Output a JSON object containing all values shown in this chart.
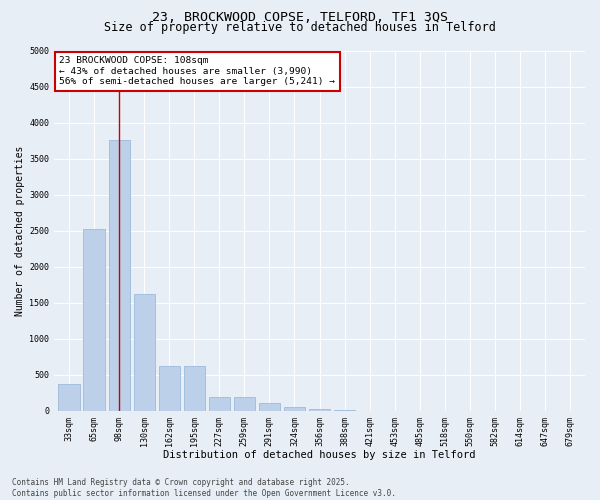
{
  "title1": "23, BROCKWOOD COPSE, TELFORD, TF1 3QS",
  "title2": "Size of property relative to detached houses in Telford",
  "xlabel": "Distribution of detached houses by size in Telford",
  "ylabel": "Number of detached properties",
  "categories": [
    "33sqm",
    "65sqm",
    "98sqm",
    "130sqm",
    "162sqm",
    "195sqm",
    "227sqm",
    "259sqm",
    "291sqm",
    "324sqm",
    "356sqm",
    "388sqm",
    "421sqm",
    "453sqm",
    "485sqm",
    "518sqm",
    "550sqm",
    "582sqm",
    "614sqm",
    "647sqm",
    "679sqm"
  ],
  "bar_heights": [
    380,
    2530,
    3760,
    1630,
    620,
    620,
    200,
    200,
    110,
    55,
    25,
    10,
    0,
    0,
    0,
    0,
    0,
    0,
    0,
    0,
    0
  ],
  "bar_color": "#bdd0e9",
  "bar_edge_color": "#92b4d5",
  "vline_x": 2,
  "vline_color": "#cc0000",
  "annotation_text": "23 BROCKWOOD COPSE: 108sqm\n← 43% of detached houses are smaller (3,990)\n56% of semi-detached houses are larger (5,241) →",
  "annotation_box_facecolor": "#ffffff",
  "annotation_box_edgecolor": "#cc0000",
  "ylim": [
    0,
    5000
  ],
  "yticks": [
    0,
    500,
    1000,
    1500,
    2000,
    2500,
    3000,
    3500,
    4000,
    4500,
    5000
  ],
  "background_color": "#e8eef5",
  "plot_bg_color": "#e8eef5",
  "title1_fontsize": 9.5,
  "title2_fontsize": 8.5,
  "xlabel_fontsize": 7.5,
  "ylabel_fontsize": 7,
  "tick_fontsize": 6,
  "annotation_fontsize": 6.8,
  "footer_fontsize": 5.5,
  "footer_line1": "Contains HM Land Registry data © Crown copyright and database right 2025.",
  "footer_line2": "Contains public sector information licensed under the Open Government Licence v3.0."
}
